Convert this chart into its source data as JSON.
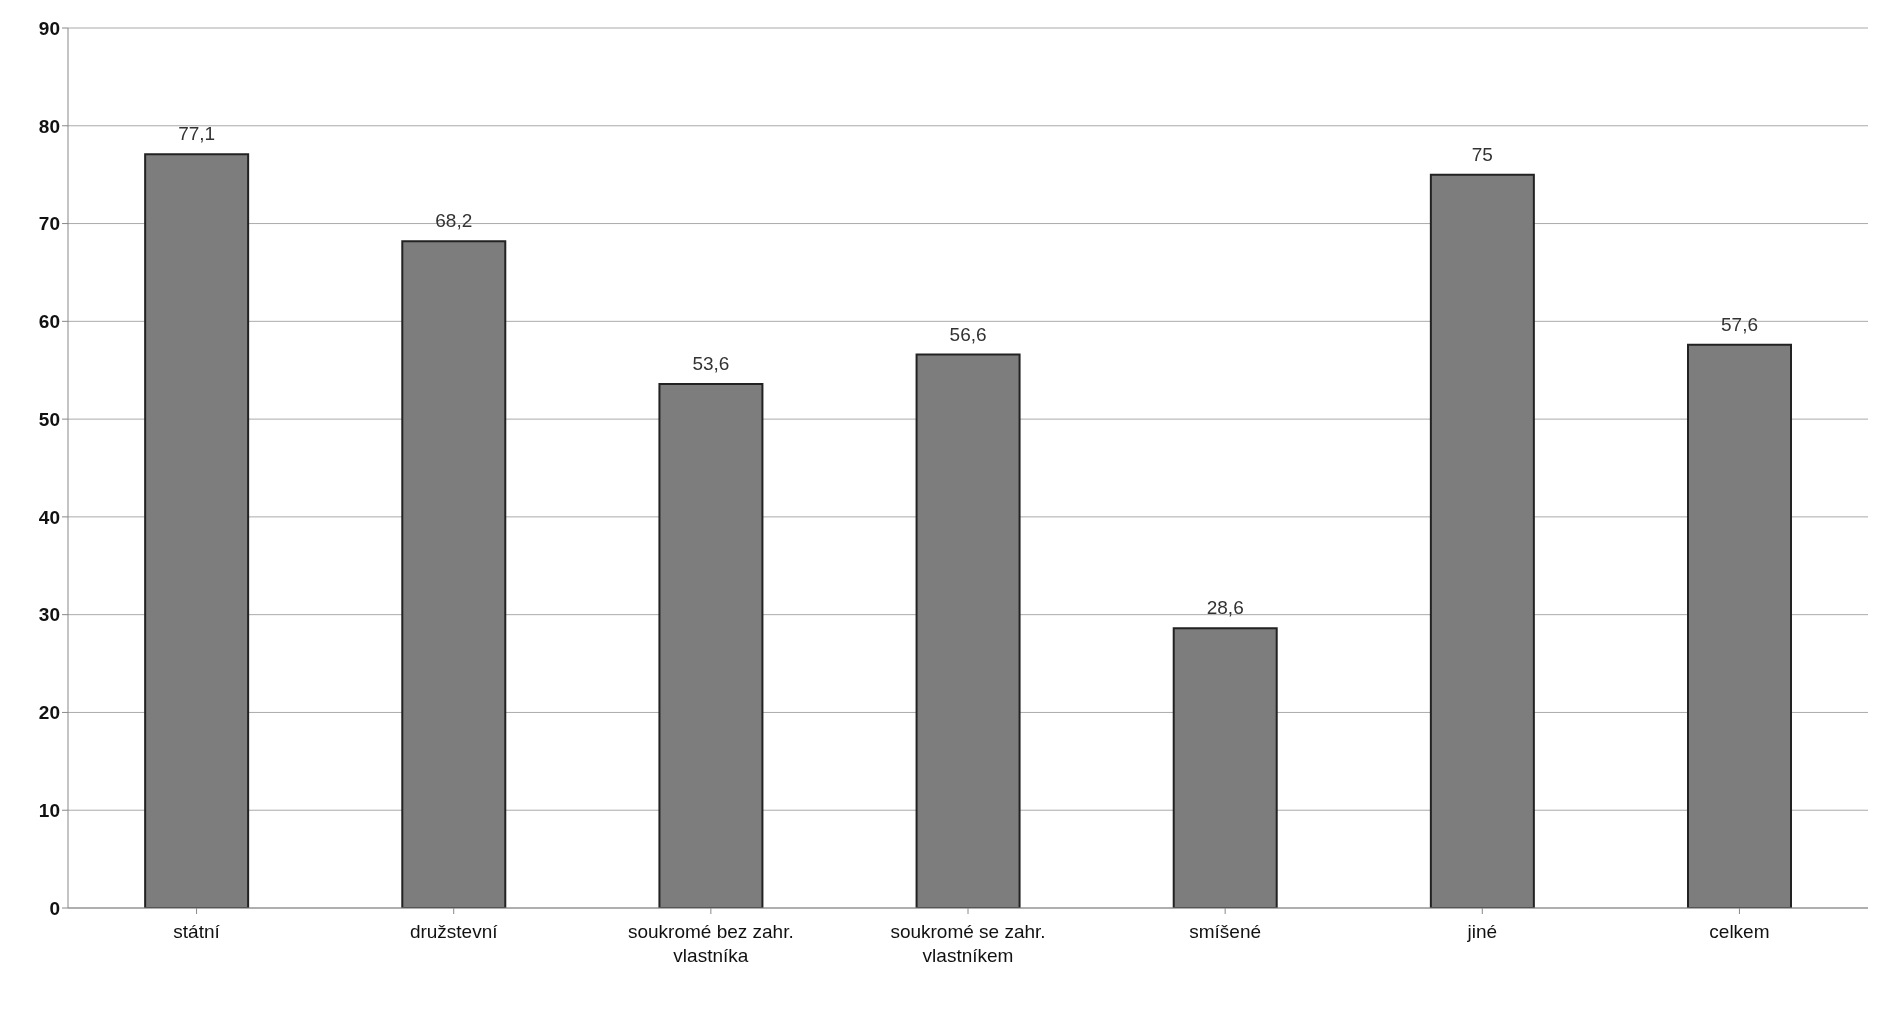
{
  "chart_data": {
    "type": "bar",
    "categories": [
      "státní",
      "družstevní",
      "soukromé bez zahr. vlastníka",
      "soukromé se zahr. vlastníkem",
      "smíšené",
      "jiné",
      "celkem"
    ],
    "values": [
      77.1,
      68.2,
      53.6,
      56.6,
      28.6,
      75,
      57.6
    ],
    "value_labels": [
      "77,1",
      "68,2",
      "53,6",
      "56,6",
      "28,6",
      "75",
      "57,6"
    ],
    "color": "#7d7d7d",
    "ylim": [
      0,
      90
    ],
    "yticks": [
      0,
      10,
      20,
      30,
      40,
      50,
      60,
      70,
      80,
      90
    ],
    "grid": "y"
  }
}
